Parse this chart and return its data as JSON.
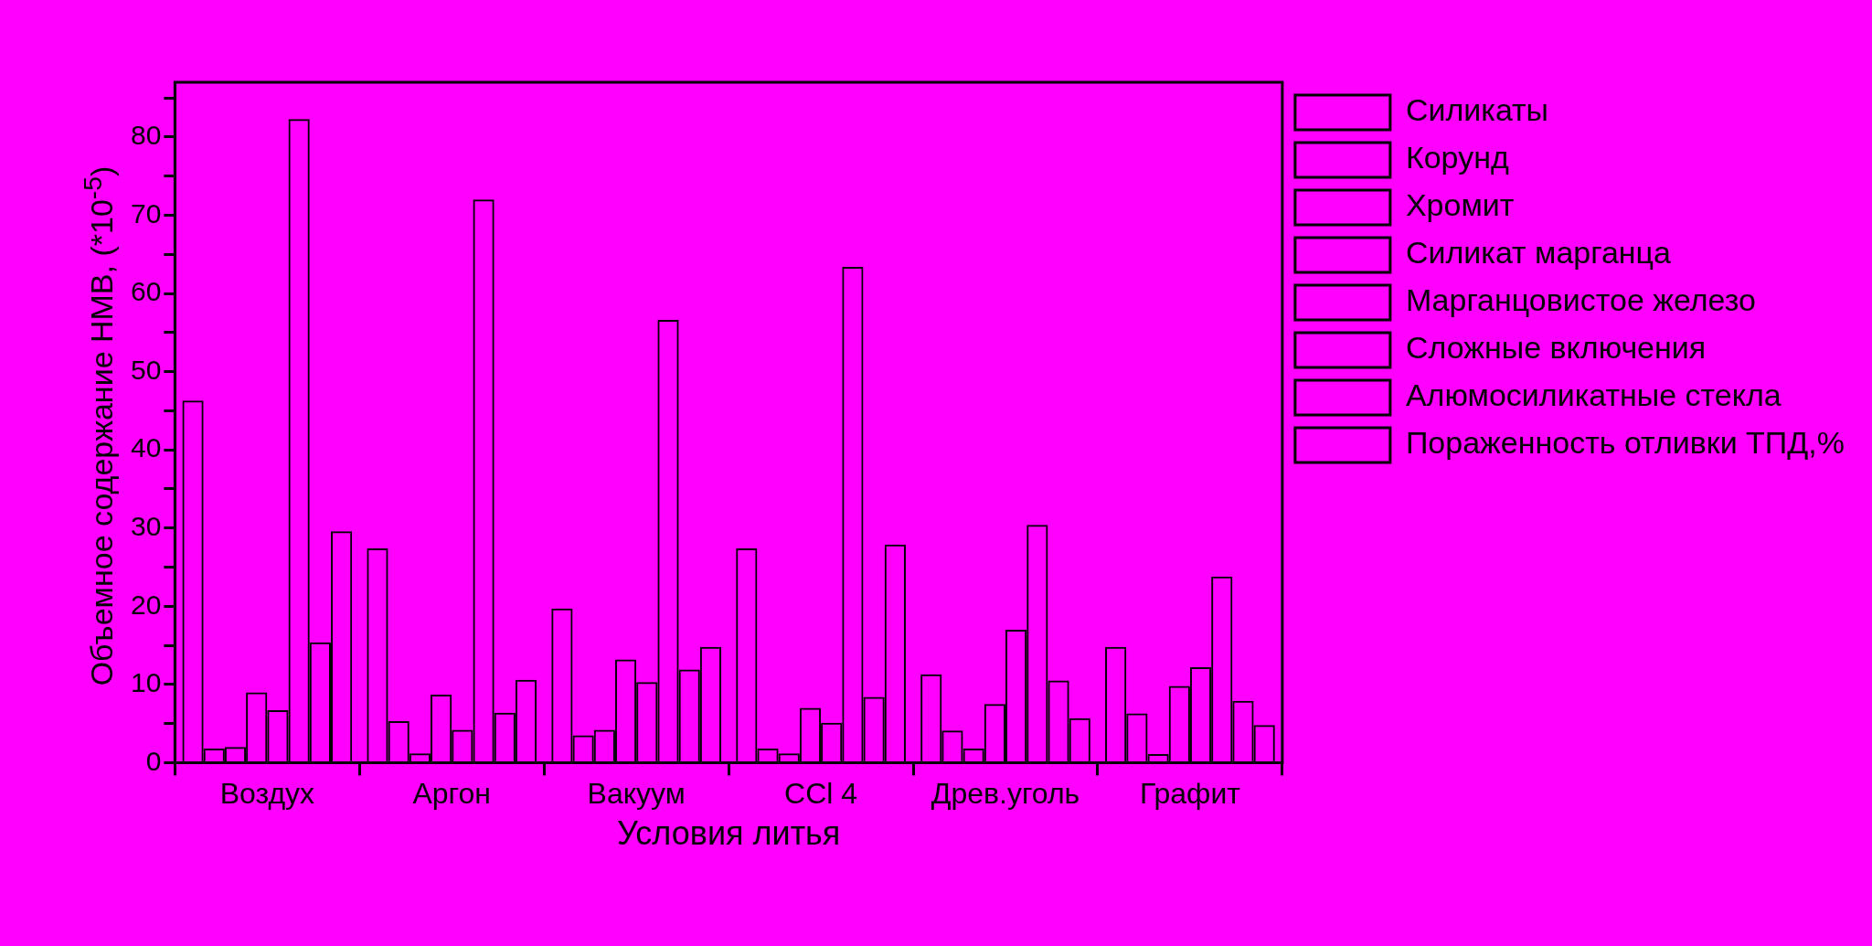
{
  "chart_data": {
    "type": "bar",
    "xlabel": "Условия литья",
    "ylabel": "Объемное содержание НМВ, (*10$^{-5}$)",
    "categories": [
      "Воздух",
      "Аргон",
      "Вакуум",
      "CCl 4",
      "Древ.уголь",
      "Графит"
    ],
    "series": [
      {
        "name": "Силикаты",
        "color": "#000000",
        "values": [
          46.3,
          27.4,
          19.7,
          27.4,
          11.3,
          14.8
        ]
      },
      {
        "name": "Корунд",
        "color": "#000000",
        "values": [
          1.8,
          5.3,
          3.5,
          1.8,
          4.1,
          6.3
        ]
      },
      {
        "name": "Хромит",
        "color": "#000000",
        "values": [
          2.0,
          1.2,
          4.2,
          1.2,
          1.8,
          1.1
        ]
      },
      {
        "name": "Силикат марганца",
        "color": "#000000",
        "values": [
          9.0,
          8.7,
          13.2,
          7.0,
          7.5,
          9.8
        ]
      },
      {
        "name": "Марганцовистое железо",
        "color": "#000000",
        "values": [
          6.7,
          4.2,
          10.3,
          5.1,
          17.0,
          12.2
        ]
      },
      {
        "name": "Сложные включения",
        "color": "#000000",
        "values": [
          82.3,
          72.0,
          56.6,
          63.4,
          30.4,
          23.8
        ]
      },
      {
        "name": "Алюмосиликатные стекла",
        "color": "#000000",
        "values": [
          15.4,
          6.4,
          11.9,
          8.4,
          10.5,
          7.9
        ]
      },
      {
        "name": "Пораженность отливки ТПД,%",
        "color": "#000000",
        "values": [
          29.6,
          10.6,
          14.8,
          27.9,
          5.7,
          4.8
        ]
      }
    ],
    "ylim": [
      0,
      87
    ],
    "yticks": [
      0,
      {
        "value": 5,
        "label": null
      },
      10,
      {
        "value": 15,
        "label": null
      },
      20,
      {
        "value": 25,
        "label": null
      },
      30,
      {
        "value": 35,
        "label": null
      },
      40,
      {
        "value": 45,
        "label": null
      },
      50,
      {
        "value": 55,
        "label": null
      },
      60,
      {
        "value": 65,
        "label": null
      },
      70,
      {
        "value": 75,
        "label": null
      },
      80,
      {
        "value": 85,
        "label": null
      }
    ],
    "grid": false,
    "legend": "top right"
  }
}
